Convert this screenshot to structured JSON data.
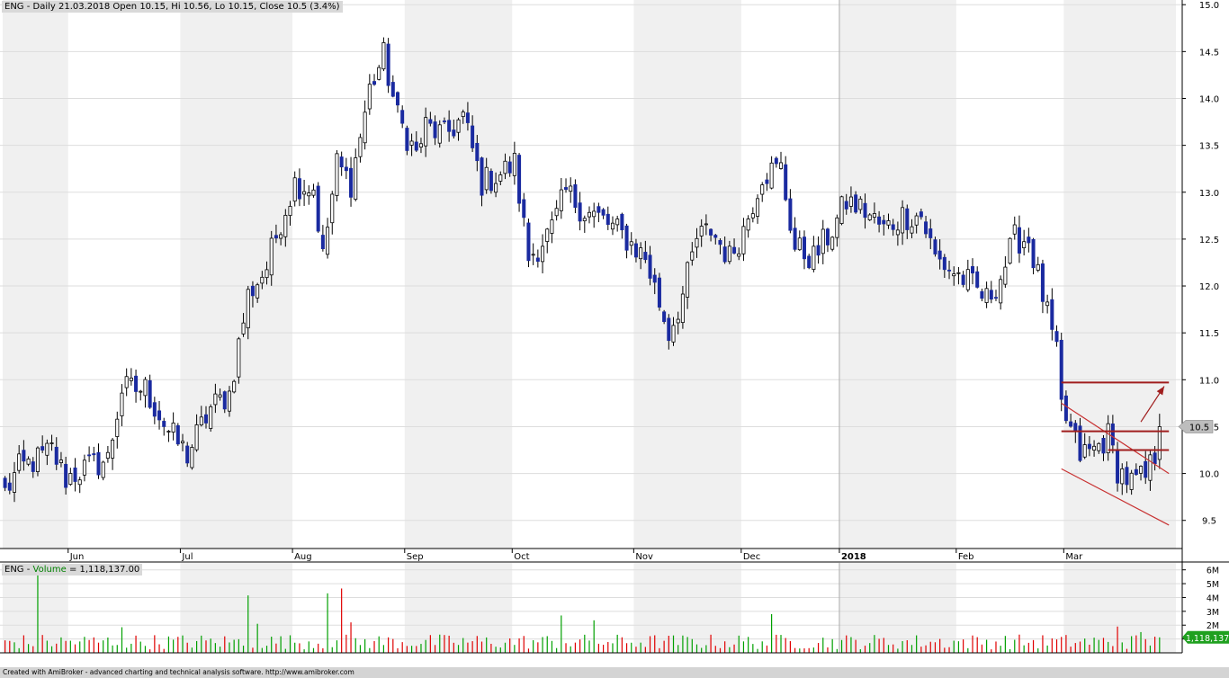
{
  "chart_data": [
    {
      "type": "candlestick",
      "title": "ENG - Daily 21.03.2018 Open 10.15, Hi 10.56, Lo 10.15, Close 10.5 (3.4%)",
      "ticker": "ENG",
      "xlabel": "",
      "ylabel": "",
      "ylim": [
        9.2,
        15.05
      ],
      "y_ticks": [
        "15.0",
        "14.5",
        "14.0",
        "13.5",
        "13.0",
        "12.5",
        "12.0",
        "11.5",
        "11.0",
        "10.5",
        "10.0",
        "9.5"
      ],
      "y_tick_values": [
        15.0,
        14.5,
        14.0,
        13.5,
        13.0,
        12.5,
        12.0,
        11.5,
        11.0,
        10.5,
        10.0,
        9.5
      ],
      "x_ticks": [
        "Jun",
        "Jul",
        "Aug",
        "Sep",
        "Oct",
        "Nov",
        "Dec",
        "2018",
        "Feb",
        "Mar"
      ],
      "x_tick_bar_index": [
        14,
        38,
        62,
        86,
        109,
        135,
        158,
        179,
        204,
        227
      ],
      "total_bars": 251,
      "grid": true,
      "price_label": "10.5",
      "last_close": 10.5,
      "waypoints": [
        [
          0,
          9.8
        ],
        [
          3,
          10.05
        ],
        [
          7,
          10.15
        ],
        [
          10,
          10.25
        ],
        [
          13,
          9.95
        ],
        [
          17,
          10.05
        ],
        [
          22,
          10.15
        ],
        [
          25,
          10.9
        ],
        [
          30,
          10.9
        ],
        [
          35,
          10.45
        ],
        [
          39,
          10.2
        ],
        [
          44,
          10.7
        ],
        [
          48,
          10.85
        ],
        [
          52,
          11.9
        ],
        [
          56,
          12.2
        ],
        [
          59,
          12.7
        ],
        [
          62,
          13.1
        ],
        [
          66,
          13.05
        ],
        [
          68,
          12.3
        ],
        [
          71,
          13.3
        ],
        [
          74,
          13.1
        ],
        [
          78,
          14.1
        ],
        [
          81,
          14.45
        ],
        [
          84,
          13.8
        ],
        [
          88,
          13.4
        ],
        [
          90,
          13.7
        ],
        [
          94,
          13.6
        ],
        [
          98,
          13.8
        ],
        [
          102,
          13.1
        ],
        [
          106,
          13.2
        ],
        [
          109,
          13.3
        ],
        [
          112,
          12.3
        ],
        [
          117,
          12.6
        ],
        [
          120,
          13.0
        ],
        [
          124,
          12.8
        ],
        [
          128,
          12.7
        ],
        [
          133,
          12.5
        ],
        [
          137,
          12.3
        ],
        [
          142,
          11.5
        ],
        [
          145,
          11.9
        ],
        [
          148,
          12.5
        ],
        [
          151,
          12.6
        ],
        [
          155,
          12.3
        ],
        [
          158,
          12.6
        ],
        [
          162,
          13.2
        ],
        [
          166,
          13.25
        ],
        [
          169,
          12.4
        ],
        [
          173,
          12.3
        ],
        [
          177,
          12.6
        ],
        [
          180,
          12.9
        ],
        [
          184,
          12.8
        ],
        [
          188,
          12.6
        ],
        [
          192,
          12.75
        ],
        [
          196,
          12.75
        ],
        [
          199,
          12.3
        ],
        [
          203,
          12.15
        ],
        [
          207,
          12.0
        ],
        [
          210,
          11.85
        ],
        [
          213,
          12.1
        ],
        [
          216,
          12.5
        ],
        [
          219,
          12.5
        ],
        [
          222,
          11.9
        ],
        [
          225,
          11.25
        ],
        [
          226,
          10.7
        ],
        [
          230,
          10.2
        ],
        [
          233,
          10.25
        ],
        [
          236,
          10.4
        ],
        [
          238,
          10.05
        ],
        [
          241,
          9.9
        ],
        [
          244,
          9.95
        ],
        [
          246,
          10.2
        ],
        [
          247,
          10.5
        ]
      ],
      "annotations": [
        {
          "type": "line",
          "from": [
            226,
            10.75
          ],
          "to": [
            249,
            10.0
          ],
          "color": "#c83232"
        },
        {
          "type": "line",
          "from": [
            226,
            10.05
          ],
          "to": [
            249,
            9.45
          ],
          "color": "#c83232"
        },
        {
          "type": "hline",
          "from": [
            226,
            10.97
          ],
          "to": [
            249,
            10.97
          ],
          "color": "#a01e1e"
        },
        {
          "type": "hline",
          "from": [
            226,
            10.45
          ],
          "to": [
            249,
            10.45
          ],
          "color": "#a01e1e"
        },
        {
          "type": "hline",
          "from": [
            236,
            10.25
          ],
          "to": [
            249,
            10.25
          ],
          "color": "#a01e1e"
        },
        {
          "type": "arrow",
          "from": [
            243,
            10.55
          ],
          "to": [
            248,
            10.93
          ],
          "color": "#a01e1e"
        }
      ]
    },
    {
      "type": "bar",
      "title": "ENG - Volume = 1,118,137.00",
      "ticker": "ENG",
      "series_name": "Volume",
      "value_label": "1,118,137.00",
      "value_badge": "1,118,137",
      "ylim": [
        0,
        6500000
      ],
      "y_ticks": [
        "6M",
        "5M",
        "4M",
        "3M",
        "2M",
        "1M"
      ],
      "y_tick_values": [
        6000000,
        5000000,
        4000000,
        3000000,
        2000000,
        1000000
      ],
      "up_color": "#00a000",
      "down_color": "#e00000",
      "last_value": 1118137,
      "spikes": [
        [
          7,
          6300000
        ],
        [
          25,
          1850000
        ],
        [
          52,
          4150000
        ],
        [
          54,
          2100000
        ],
        [
          69,
          4300000
        ],
        [
          72,
          4650000
        ],
        [
          74,
          2200000
        ],
        [
          119,
          2700000
        ],
        [
          126,
          2350000
        ],
        [
          164,
          2800000
        ],
        [
          238,
          1900000
        ],
        [
          243,
          1500000
        ]
      ]
    }
  ],
  "colors": {
    "up_candle": "#ffffff",
    "down_candle": "#1a2aa0",
    "price_badge": "#bdbdbd",
    "volume_badge": "#1fa01f",
    "grid": "#dddddd",
    "month_band": "#f0f0f0"
  },
  "footer_text": "Created with AmiBroker - advanced charting and technical analysis software. http://www.amibroker.com"
}
